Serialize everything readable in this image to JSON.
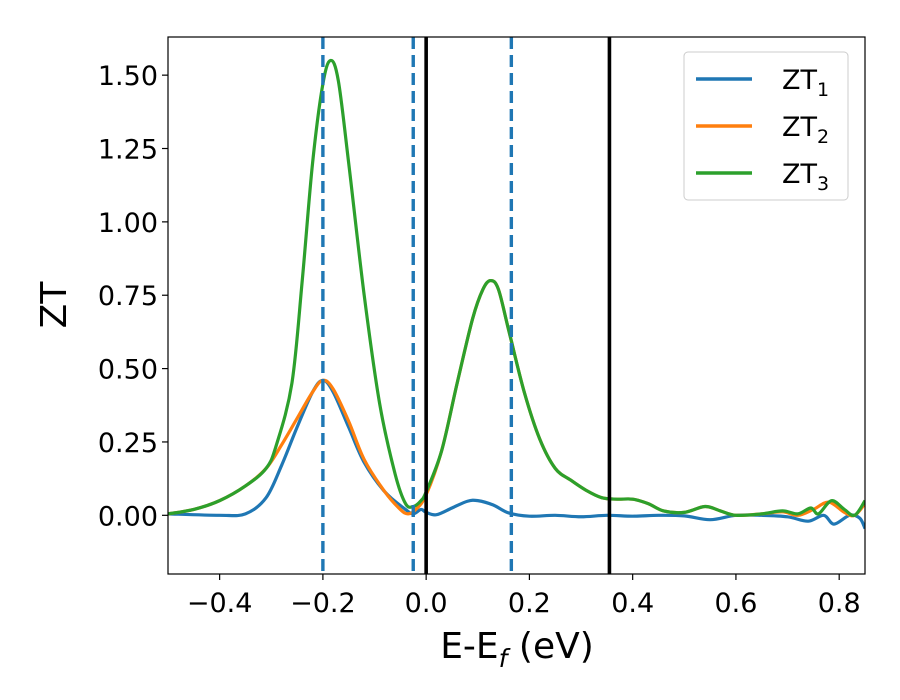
{
  "chart_data": {
    "type": "line",
    "xlabel_main": "E-E",
    "xlabel_sub": "f",
    "xlabel_unit": " (eV)",
    "ylabel": "ZT",
    "xlim": [
      -0.5,
      0.85
    ],
    "ylim": [
      -0.2,
      1.63
    ],
    "x_ticks": [
      -0.4,
      -0.2,
      0.0,
      0.2,
      0.4,
      0.6,
      0.8
    ],
    "x_tick_labels": [
      "−0.4",
      "−0.2",
      "0.0",
      "0.2",
      "0.4",
      "0.6",
      "0.8"
    ],
    "y_ticks": [
      0.0,
      0.25,
      0.5,
      0.75,
      1.0,
      1.25,
      1.5
    ],
    "y_tick_labels": [
      "0.00",
      "0.25",
      "0.50",
      "0.75",
      "1.00",
      "1.25",
      "1.50"
    ],
    "grid": false,
    "legend_position": "top-right",
    "vertical_lines": [
      {
        "x": -0.2,
        "style": "dashed",
        "color": "#1f77b4"
      },
      {
        "x": -0.025,
        "style": "dashed",
        "color": "#1f77b4"
      },
      {
        "x": 0.165,
        "style": "dashed",
        "color": "#1f77b4"
      },
      {
        "x": 0.0,
        "style": "solid",
        "color": "#000000"
      },
      {
        "x": 0.355,
        "style": "solid",
        "color": "#000000"
      }
    ],
    "series": [
      {
        "name": "ZT",
        "subscript": "1",
        "color": "#1f77b4",
        "points": [
          [
            -0.5,
            0.005
          ],
          [
            -0.4,
            0.0
          ],
          [
            -0.35,
            0.005
          ],
          [
            -0.31,
            0.06
          ],
          [
            -0.28,
            0.17
          ],
          [
            -0.25,
            0.3
          ],
          [
            -0.22,
            0.42
          ],
          [
            -0.2,
            0.46
          ],
          [
            -0.18,
            0.42
          ],
          [
            -0.15,
            0.3
          ],
          [
            -0.12,
            0.18
          ],
          [
            -0.08,
            0.08
          ],
          [
            -0.04,
            0.02
          ],
          [
            -0.025,
            0.005
          ],
          [
            -0.01,
            0.02
          ],
          [
            0.0,
            0.01
          ],
          [
            0.02,
            0.002
          ],
          [
            0.05,
            0.025
          ],
          [
            0.08,
            0.048
          ],
          [
            0.1,
            0.05
          ],
          [
            0.13,
            0.035
          ],
          [
            0.16,
            0.008
          ],
          [
            0.2,
            -0.003
          ],
          [
            0.25,
            0.0
          ],
          [
            0.3,
            -0.005
          ],
          [
            0.35,
            0.0
          ],
          [
            0.4,
            -0.003
          ],
          [
            0.45,
            0.0
          ],
          [
            0.5,
            -0.002
          ],
          [
            0.55,
            -0.015
          ],
          [
            0.6,
            0.0
          ],
          [
            0.65,
            0.0
          ],
          [
            0.7,
            -0.005
          ],
          [
            0.74,
            -0.02
          ],
          [
            0.77,
            0.0
          ],
          [
            0.79,
            -0.03
          ],
          [
            0.82,
            0.0
          ],
          [
            0.84,
            -0.01
          ],
          [
            0.85,
            -0.045
          ]
        ]
      },
      {
        "name": "ZT",
        "subscript": "2",
        "color": "#ff7f0e",
        "points": [
          [
            -0.5,
            0.005
          ],
          [
            -0.45,
            0.02
          ],
          [
            -0.4,
            0.05
          ],
          [
            -0.35,
            0.1
          ],
          [
            -0.31,
            0.16
          ],
          [
            -0.28,
            0.24
          ],
          [
            -0.25,
            0.33
          ],
          [
            -0.22,
            0.42
          ],
          [
            -0.2,
            0.46
          ],
          [
            -0.18,
            0.43
          ],
          [
            -0.15,
            0.32
          ],
          [
            -0.12,
            0.19
          ],
          [
            -0.08,
            0.08
          ],
          [
            -0.05,
            0.02
          ],
          [
            -0.035,
            0.005
          ],
          [
            -0.02,
            0.02
          ],
          [
            0.0,
            0.07
          ],
          [
            0.03,
            0.22
          ],
          [
            0.06,
            0.45
          ],
          [
            0.09,
            0.67
          ],
          [
            0.11,
            0.77
          ],
          [
            0.125,
            0.8
          ],
          [
            0.14,
            0.77
          ],
          [
            0.16,
            0.63
          ],
          [
            0.19,
            0.42
          ],
          [
            0.22,
            0.26
          ],
          [
            0.25,
            0.16
          ],
          [
            0.28,
            0.12
          ],
          [
            0.31,
            0.085
          ],
          [
            0.34,
            0.06
          ],
          [
            0.37,
            0.055
          ],
          [
            0.4,
            0.055
          ],
          [
            0.43,
            0.04
          ],
          [
            0.46,
            0.015
          ],
          [
            0.5,
            0.01
          ],
          [
            0.54,
            0.03
          ],
          [
            0.57,
            0.015
          ],
          [
            0.6,
            0.0
          ],
          [
            0.65,
            0.005
          ],
          [
            0.69,
            0.012
          ],
          [
            0.72,
            0.0
          ],
          [
            0.75,
            0.02
          ],
          [
            0.78,
            0.045
          ],
          [
            0.81,
            0.01
          ],
          [
            0.83,
            0.0
          ],
          [
            0.85,
            0.04
          ]
        ]
      },
      {
        "name": "ZT",
        "subscript": "3",
        "color": "#2ca02c",
        "points": [
          [
            -0.5,
            0.005
          ],
          [
            -0.45,
            0.02
          ],
          [
            -0.4,
            0.05
          ],
          [
            -0.35,
            0.1
          ],
          [
            -0.31,
            0.16
          ],
          [
            -0.29,
            0.24
          ],
          [
            -0.26,
            0.45
          ],
          [
            -0.24,
            0.8
          ],
          [
            -0.22,
            1.2
          ],
          [
            -0.2,
            1.47
          ],
          [
            -0.185,
            1.55
          ],
          [
            -0.17,
            1.48
          ],
          [
            -0.15,
            1.2
          ],
          [
            -0.12,
            0.75
          ],
          [
            -0.09,
            0.38
          ],
          [
            -0.06,
            0.14
          ],
          [
            -0.04,
            0.04
          ],
          [
            -0.025,
            0.03
          ],
          [
            -0.01,
            0.05
          ],
          [
            0.0,
            0.08
          ],
          [
            0.03,
            0.22
          ],
          [
            0.06,
            0.45
          ],
          [
            0.09,
            0.67
          ],
          [
            0.11,
            0.77
          ],
          [
            0.125,
            0.8
          ],
          [
            0.14,
            0.77
          ],
          [
            0.16,
            0.63
          ],
          [
            0.19,
            0.42
          ],
          [
            0.22,
            0.26
          ],
          [
            0.25,
            0.16
          ],
          [
            0.28,
            0.12
          ],
          [
            0.31,
            0.085
          ],
          [
            0.34,
            0.06
          ],
          [
            0.37,
            0.055
          ],
          [
            0.4,
            0.055
          ],
          [
            0.43,
            0.04
          ],
          [
            0.46,
            0.015
          ],
          [
            0.5,
            0.01
          ],
          [
            0.54,
            0.03
          ],
          [
            0.57,
            0.015
          ],
          [
            0.6,
            0.0
          ],
          [
            0.65,
            0.005
          ],
          [
            0.69,
            0.015
          ],
          [
            0.72,
            0.005
          ],
          [
            0.745,
            0.025
          ],
          [
            0.76,
            0.005
          ],
          [
            0.785,
            0.05
          ],
          [
            0.81,
            0.02
          ],
          [
            0.83,
            0.0
          ],
          [
            0.85,
            0.05
          ]
        ]
      }
    ]
  }
}
